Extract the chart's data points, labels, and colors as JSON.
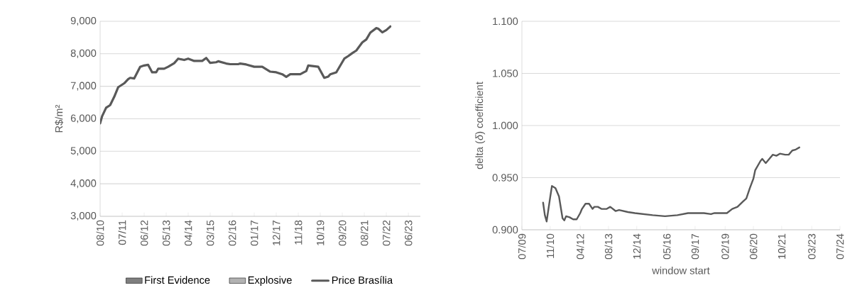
{
  "chart_data": [
    {
      "type": "line",
      "ylabel": "R$/m²",
      "grid": "y",
      "legend": "bottom",
      "xlim": [
        "2010-08",
        "2023-12"
      ],
      "ylim": [
        3000,
        9000
      ],
      "xticks": [
        {
          "value": "2010-08",
          "label": "08/10"
        },
        {
          "value": "2011-07",
          "label": "07/11"
        },
        {
          "value": "2012-06",
          "label": "06/12"
        },
        {
          "value": "2013-05",
          "label": "05/13"
        },
        {
          "value": "2014-04",
          "label": "04/14"
        },
        {
          "value": "2015-03",
          "label": "03/15"
        },
        {
          "value": "2016-02",
          "label": "02/16"
        },
        {
          "value": "2017-01",
          "label": "01/17"
        },
        {
          "value": "2017-12",
          "label": "12/17"
        },
        {
          "value": "2018-11",
          "label": "11/18"
        },
        {
          "value": "2019-10",
          "label": "10/19"
        },
        {
          "value": "2020-09",
          "label": "09/20"
        },
        {
          "value": "2021-08",
          "label": "08/21"
        },
        {
          "value": "2022-07",
          "label": "07/22"
        },
        {
          "value": "2023-06",
          "label": "06/23"
        }
      ],
      "yticks": [
        {
          "value": 3000,
          "label": "3,000"
        },
        {
          "value": 4000,
          "label": "4,000"
        },
        {
          "value": 5000,
          "label": "5,000"
        },
        {
          "value": 6000,
          "label": "6,000"
        },
        {
          "value": 7000,
          "label": "7,000"
        },
        {
          "value": 8000,
          "label": "8,000"
        },
        {
          "value": 9000,
          "label": "9,000"
        }
      ],
      "x": [
        "2010-08",
        "2010-09",
        "2010-10",
        "2010-11",
        "2011-01",
        "2011-03",
        "2011-05",
        "2011-08",
        "2011-10",
        "2011-11",
        "2012-01",
        "2012-04",
        "2012-06",
        "2012-08",
        "2012-10",
        "2012-12",
        "2013-01",
        "2013-04",
        "2013-06",
        "2013-09",
        "2013-11",
        "2014-02",
        "2014-04",
        "2014-07",
        "2014-11",
        "2015-01",
        "2015-03",
        "2015-06",
        "2015-07",
        "2015-11",
        "2016-01",
        "2016-05",
        "2016-06",
        "2016-09",
        "2017-01",
        "2017-05",
        "2017-09",
        "2017-12",
        "2018-03",
        "2018-05",
        "2018-07",
        "2018-12",
        "2019-03",
        "2019-04",
        "2019-09",
        "2019-12",
        "2020-02",
        "2020-03",
        "2020-06",
        "2020-10",
        "2020-12",
        "2021-02",
        "2021-04",
        "2021-07",
        "2021-09",
        "2021-11",
        "2022-02",
        "2022-03",
        "2022-05",
        "2022-07",
        "2022-09"
      ],
      "series": [
        {
          "name": "First Evidence",
          "type": "bar",
          "color": "#7f7f7f",
          "values": [
            null,
            null,
            null,
            null,
            null,
            null,
            null,
            null,
            null,
            null,
            null,
            null,
            null,
            null,
            null,
            null,
            null,
            null,
            null,
            null,
            null,
            null,
            null,
            null,
            null,
            null,
            null,
            null,
            null,
            null,
            null,
            null,
            null,
            null,
            null,
            null,
            null,
            null,
            null,
            null,
            null,
            null,
            null,
            null,
            null,
            null,
            null,
            null,
            null,
            null,
            null,
            null,
            null,
            null,
            null,
            null,
            null,
            null,
            null,
            null,
            null
          ]
        },
        {
          "name": "Explosive",
          "type": "bar",
          "color": "#b2b2b2",
          "values": [
            null,
            null,
            null,
            null,
            null,
            null,
            null,
            null,
            null,
            null,
            null,
            null,
            null,
            null,
            null,
            null,
            null,
            null,
            null,
            null,
            null,
            null,
            null,
            null,
            null,
            null,
            null,
            null,
            null,
            null,
            null,
            null,
            null,
            null,
            null,
            null,
            null,
            null,
            null,
            null,
            null,
            null,
            null,
            null,
            null,
            null,
            null,
            null,
            null,
            null,
            null,
            null,
            null,
            null,
            null,
            null,
            null,
            null,
            null,
            null,
            null
          ]
        },
        {
          "name": "Price Brasília",
          "color": "#595959",
          "values": [
            5860,
            6080,
            6210,
            6340,
            6420,
            6670,
            6970,
            7090,
            7220,
            7260,
            7240,
            7600,
            7640,
            7660,
            7430,
            7430,
            7540,
            7540,
            7600,
            7710,
            7850,
            7810,
            7850,
            7780,
            7780,
            7870,
            7720,
            7740,
            7770,
            7700,
            7680,
            7680,
            7700,
            7670,
            7600,
            7600,
            7450,
            7430,
            7370,
            7290,
            7370,
            7370,
            7470,
            7640,
            7600,
            7260,
            7300,
            7370,
            7430,
            7850,
            7930,
            8020,
            8100,
            8350,
            8440,
            8650,
            8790,
            8770,
            8660,
            8730,
            8840
          ]
        }
      ]
    },
    {
      "type": "line",
      "xlabel": "window start",
      "ylabel": "delta (*δ*) coefficient",
      "grid": "y",
      "xlim": [
        "2009-07",
        "2024-07"
      ],
      "ylim": [
        0.9,
        1.1
      ],
      "xticks": [
        {
          "value": "2009-07",
          "label": "07/09"
        },
        {
          "value": "2010-11",
          "label": "11/10"
        },
        {
          "value": "2012-04",
          "label": "04/12"
        },
        {
          "value": "2013-08",
          "label": "08/13"
        },
        {
          "value": "2014-12",
          "label": "12/14"
        },
        {
          "value": "2016-05",
          "label": "05/16"
        },
        {
          "value": "2017-09",
          "label": "09/17"
        },
        {
          "value": "2019-02",
          "label": "02/19"
        },
        {
          "value": "2020-06",
          "label": "06/20"
        },
        {
          "value": "2021-10",
          "label": "10/21"
        },
        {
          "value": "2023-03",
          "label": "03/23"
        },
        {
          "value": "2024-07",
          "label": "07/24"
        }
      ],
      "yticks": [
        {
          "value": 0.9,
          "label": "0.900"
        },
        {
          "value": 0.95,
          "label": "0.950"
        },
        {
          "value": 1.0,
          "label": "1.000"
        },
        {
          "value": 1.05,
          "label": "1.050"
        },
        {
          "value": 1.1,
          "label": "1.100"
        }
      ],
      "x": [
        "2010-07",
        "2010-08",
        "2010-09",
        "2010-11",
        "2010-12",
        "2011-02",
        "2011-04",
        "2011-06",
        "2011-07",
        "2011-08",
        "2011-10",
        "2011-12",
        "2012-02",
        "2012-04",
        "2012-05",
        "2012-07",
        "2012-09",
        "2012-11",
        "2012-12",
        "2013-02",
        "2013-04",
        "2013-07",
        "2013-09",
        "2013-12",
        "2014-02",
        "2014-07",
        "2014-11",
        "2015-09",
        "2016-04",
        "2016-11",
        "2017-05",
        "2018-02",
        "2018-06",
        "2018-08",
        "2019-03",
        "2019-06",
        "2019-09",
        "2019-12",
        "2020-02",
        "2020-04",
        "2020-06",
        "2020-07",
        "2020-10",
        "2020-11",
        "2021-01",
        "2021-03",
        "2021-05",
        "2021-07",
        "2021-09",
        "2021-12",
        "2022-02",
        "2022-04",
        "2022-06",
        "2022-08"
      ],
      "series": [
        {
          "color": "#595959",
          "values": [
            0.926,
            0.914,
            0.908,
            0.931,
            0.942,
            0.94,
            0.932,
            0.911,
            0.909,
            0.913,
            0.912,
            0.91,
            0.91,
            0.916,
            0.92,
            0.925,
            0.925,
            0.92,
            0.922,
            0.922,
            0.92,
            0.92,
            0.922,
            0.918,
            0.919,
            0.917,
            0.916,
            0.914,
            0.913,
            0.914,
            0.916,
            0.916,
            0.915,
            0.916,
            0.916,
            0.92,
            0.922,
            0.927,
            0.93,
            0.94,
            0.949,
            0.957,
            0.966,
            0.968,
            0.964,
            0.968,
            0.972,
            0.971,
            0.973,
            0.972,
            0.972,
            0.976,
            0.977,
            0.979
          ]
        }
      ]
    }
  ]
}
